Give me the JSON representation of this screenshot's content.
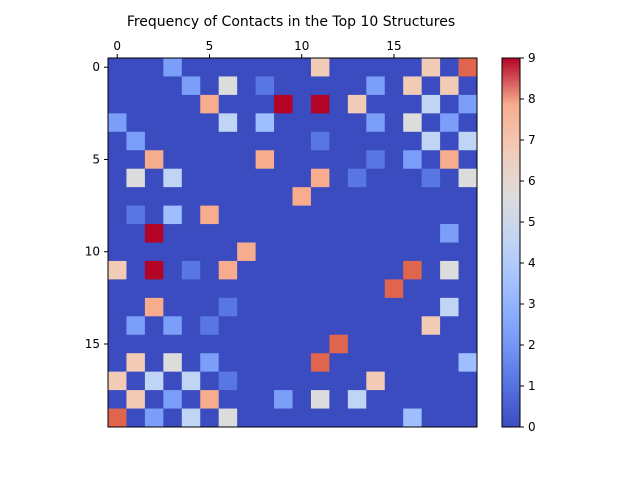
{
  "chart_data": {
    "type": "heatmap",
    "title": "Frequency of Contacts in the Top 10 Structures",
    "xlabel": "",
    "ylabel": "",
    "n": 20,
    "x_ticks": [
      0,
      5,
      10,
      15
    ],
    "y_ticks": [
      0,
      5,
      10,
      15
    ],
    "x_tick_position": "top",
    "colormap": "coolwarm",
    "vmin": 0,
    "vmax": 9,
    "colorbar_ticks": [
      0,
      1,
      2,
      3,
      4,
      5,
      6,
      7,
      8,
      9
    ],
    "colorbar_position": "right",
    "grid": false,
    "matrix": [
      [
        0,
        0,
        0,
        2,
        0,
        0,
        0,
        0,
        0,
        0,
        0,
        6,
        0,
        0,
        0,
        0,
        0,
        6,
        0,
        8
      ],
      [
        0,
        0,
        0,
        0,
        2,
        0,
        5,
        0,
        1,
        0,
        0,
        0,
        0,
        0,
        2,
        0,
        6,
        0,
        6,
        0
      ],
      [
        0,
        0,
        0,
        0,
        0,
        7,
        0,
        0,
        0,
        9,
        0,
        9,
        0,
        6,
        0,
        0,
        0,
        4,
        0,
        2
      ],
      [
        2,
        0,
        0,
        0,
        0,
        0,
        4,
        0,
        3,
        0,
        0,
        0,
        0,
        0,
        2,
        0,
        5,
        0,
        2,
        0
      ],
      [
        0,
        2,
        0,
        0,
        0,
        0,
        0,
        0,
        0,
        0,
        0,
        1,
        0,
        0,
        0,
        0,
        0,
        4,
        0,
        4
      ],
      [
        0,
        0,
        7,
        0,
        0,
        0,
        0,
        0,
        7,
        0,
        0,
        0,
        0,
        0,
        1,
        0,
        2,
        0,
        7,
        0
      ],
      [
        0,
        5,
        0,
        4,
        0,
        0,
        0,
        0,
        0,
        0,
        0,
        7,
        0,
        1,
        0,
        0,
        0,
        1,
        0,
        5
      ],
      [
        0,
        0,
        0,
        0,
        0,
        0,
        0,
        0,
        0,
        0,
        7,
        0,
        0,
        0,
        0,
        0,
        0,
        0,
        0,
        0
      ],
      [
        0,
        1,
        0,
        3,
        0,
        7,
        0,
        0,
        0,
        0,
        0,
        0,
        0,
        0,
        0,
        0,
        0,
        0,
        0,
        0
      ],
      [
        0,
        0,
        9,
        0,
        0,
        0,
        0,
        0,
        0,
        0,
        0,
        0,
        0,
        0,
        0,
        0,
        0,
        0,
        2,
        0
      ],
      [
        0,
        0,
        0,
        0,
        0,
        0,
        0,
        7,
        0,
        0,
        0,
        0,
        0,
        0,
        0,
        0,
        0,
        0,
        0,
        0
      ],
      [
        6,
        0,
        9,
        0,
        1,
        0,
        7,
        0,
        0,
        0,
        0,
        0,
        0,
        0,
        0,
        0,
        8,
        0,
        5,
        0
      ],
      [
        0,
        0,
        0,
        0,
        0,
        0,
        0,
        0,
        0,
        0,
        0,
        0,
        0,
        0,
        0,
        8,
        0,
        0,
        0,
        0
      ],
      [
        0,
        0,
        7,
        0,
        0,
        0,
        1,
        0,
        0,
        0,
        0,
        0,
        0,
        0,
        0,
        0,
        0,
        0,
        4,
        0
      ],
      [
        0,
        2,
        0,
        2,
        0,
        1,
        0,
        0,
        0,
        0,
        0,
        0,
        0,
        0,
        0,
        0,
        0,
        6,
        0,
        0
      ],
      [
        0,
        0,
        0,
        0,
        0,
        0,
        0,
        0,
        0,
        0,
        0,
        0,
        8,
        0,
        0,
        0,
        0,
        0,
        0,
        0
      ],
      [
        0,
        6,
        0,
        5,
        0,
        2,
        0,
        0,
        0,
        0,
        0,
        8,
        0,
        0,
        0,
        0,
        0,
        0,
        0,
        3
      ],
      [
        6,
        0,
        4,
        0,
        4,
        0,
        1,
        0,
        0,
        0,
        0,
        0,
        0,
        0,
        6,
        0,
        0,
        0,
        0,
        0
      ],
      [
        0,
        6,
        0,
        2,
        0,
        7,
        0,
        0,
        0,
        2,
        0,
        5,
        0,
        4,
        0,
        0,
        0,
        0,
        0,
        0
      ],
      [
        8,
        0,
        2,
        0,
        4,
        0,
        5,
        0,
        0,
        0,
        0,
        0,
        0,
        0,
        0,
        0,
        3,
        0,
        0,
        0
      ]
    ]
  }
}
